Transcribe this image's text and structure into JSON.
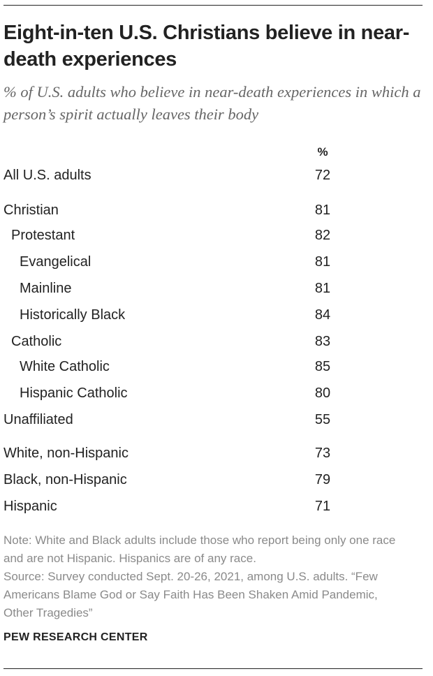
{
  "header": {
    "title": "Eight-in-ten U.S. Christians believe in near-death experiences",
    "subtitle": "% of U.S. adults who believe in near-death experiences in which a person’s spirit actually leaves their body"
  },
  "table": {
    "column_header": "%",
    "rows": [
      [
        "All U.S. adults",
        72
      ],
      [
        "Christian",
        81
      ],
      [
        "Protestant",
        82
      ],
      [
        "Evangelical",
        81
      ],
      [
        "Mainline",
        81
      ],
      [
        "Historically Black",
        84
      ],
      [
        "Catholic",
        83
      ],
      [
        "White Catholic",
        85
      ],
      [
        "Hispanic Catholic",
        80
      ],
      [
        "Unaffiliated",
        55
      ],
      [
        "White, non-Hispanic",
        73
      ],
      [
        "Black, non-Hispanic",
        79
      ],
      [
        "Hispanic",
        71
      ]
    ]
  },
  "footer": {
    "note": "Note: White and Black adults include those who report being only one race and are not Hispanic. Hispanics are of any race.",
    "source": "Source: Survey conducted Sept. 20-26, 2021, among U.S. adults. “Few Americans Blame God or Say Faith Has Been Shaken Amid Pandemic, Other Tragedies”",
    "publisher": "PEW RESEARCH CENTER"
  }
}
